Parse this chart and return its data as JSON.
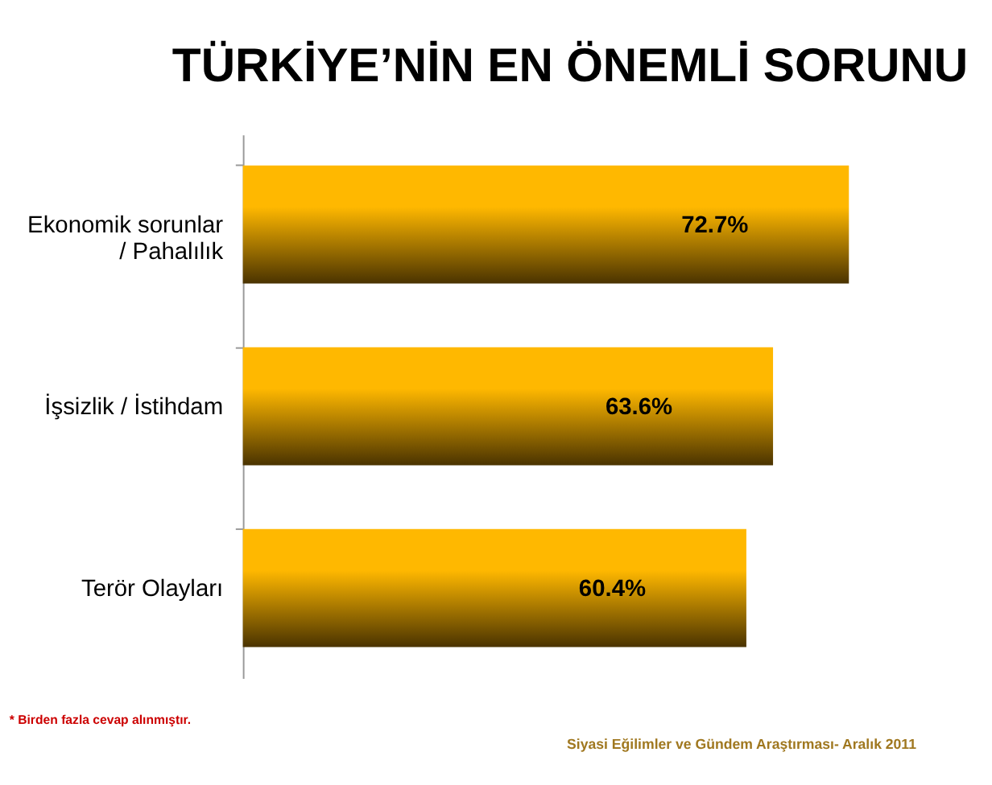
{
  "chart_data": {
    "type": "bar",
    "orientation": "horizontal",
    "title": "TÜRKİYE’NİN EN ÖNEMLİ SORUNU",
    "categories": [
      "Ekonomik sorunlar\n/ Pahalılık",
      "İşsizlik / İstihdam",
      "Terör Olayları"
    ],
    "values": [
      72.7,
      63.6,
      60.4
    ],
    "value_labels": [
      "72.7%",
      "63.6%",
      "60.4%"
    ],
    "color": "#ffb800",
    "annotations": [
      "* Birden fazla cevap alınmıştır.",
      "Siyasi Eğilimler ve Gündem Araştırması- Aralık 2011"
    ]
  }
}
